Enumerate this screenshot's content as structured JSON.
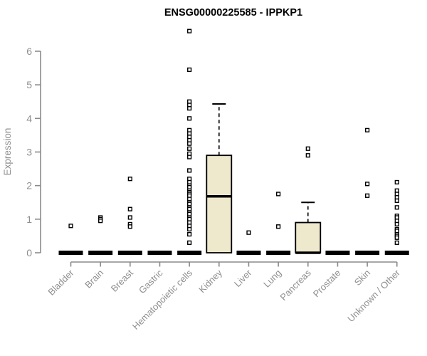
{
  "figure": {
    "title": "ENSG00000225585 - IPPKP1",
    "ylabel": "Expression"
  },
  "chart_data": {
    "type": "boxplot",
    "title": "ENSG00000225585 - IPPKP1",
    "xlabel": "",
    "ylabel": "Expression",
    "ylim": [
      0,
      6.8
    ],
    "yticks": [
      0,
      1,
      2,
      3,
      4,
      5,
      6
    ],
    "grid": false,
    "legend": "none",
    "colors": {
      "box_fill": "#eee8cd",
      "box_stroke": "#000000",
      "median": "#000000",
      "whisker": "#000000",
      "outlier_stroke": "#000000",
      "outlier_fill": "#ffffff",
      "axis": "#8a8a8a",
      "tick_label": "#8f8f8f",
      "title": "#000000",
      "background": "#ffffff"
    },
    "categories": [
      "Bladder",
      "Brain",
      "Breast",
      "Gastric",
      "Hematopoietic cells",
      "Kidney",
      "Liver",
      "Lung",
      "Pancreas",
      "Prostate",
      "Skin",
      "Unknown / Other"
    ],
    "boxes": [
      {
        "category": "Bladder",
        "q1": 0,
        "median": 0,
        "q3": 0,
        "whisker_low": 0,
        "whisker_high": 0,
        "outliers": [
          0.8
        ]
      },
      {
        "category": "Brain",
        "q1": 0,
        "median": 0,
        "q3": 0,
        "whisker_low": 0,
        "whisker_high": 0,
        "outliers": [
          1.05,
          1.0,
          0.95
        ]
      },
      {
        "category": "Breast",
        "q1": 0,
        "median": 0,
        "q3": 0,
        "whisker_low": 0,
        "whisker_high": 0,
        "outliers": [
          2.2,
          1.3,
          1.05,
          0.85,
          0.78
        ]
      },
      {
        "category": "Gastric",
        "q1": 0,
        "median": 0,
        "q3": 0,
        "whisker_low": 0,
        "whisker_high": 0,
        "outliers": []
      },
      {
        "category": "Hematopoietic cells",
        "q1": 0,
        "median": 0,
        "q3": 0,
        "whisker_low": 0,
        "whisker_high": 0,
        "outliers": [
          6.6,
          5.45,
          4.5,
          4.4,
          4.3,
          4.0,
          3.65,
          3.55,
          3.45,
          3.35,
          3.25,
          3.1,
          2.95,
          2.85,
          2.45,
          2.2,
          2.1,
          2.0,
          1.95,
          1.85,
          1.8,
          1.75,
          1.7,
          1.6,
          1.5,
          1.45,
          1.35,
          1.3,
          1.2,
          1.15,
          1.05,
          1.0,
          0.9,
          0.8,
          0.7,
          0.55,
          0.3
        ]
      },
      {
        "category": "Kidney",
        "q1": 0,
        "median": 1.68,
        "q3": 2.9,
        "whisker_low": 0,
        "whisker_high": 4.43,
        "outliers": []
      },
      {
        "category": "Liver",
        "q1": 0,
        "median": 0,
        "q3": 0,
        "whisker_low": 0,
        "whisker_high": 0,
        "outliers": [
          0.6
        ]
      },
      {
        "category": "Lung",
        "q1": 0,
        "median": 0,
        "q3": 0,
        "whisker_low": 0,
        "whisker_high": 0,
        "outliers": [
          1.75,
          0.78
        ]
      },
      {
        "category": "Pancreas",
        "q1": 0,
        "median": 0,
        "q3": 0.9,
        "whisker_low": 0,
        "whisker_high": 1.5,
        "outliers": [
          3.1,
          2.9
        ]
      },
      {
        "category": "Prostate",
        "q1": 0,
        "median": 0,
        "q3": 0,
        "whisker_low": 0,
        "whisker_high": 0,
        "outliers": []
      },
      {
        "category": "Skin",
        "q1": 0,
        "median": 0,
        "q3": 0,
        "whisker_low": 0,
        "whisker_high": 0,
        "outliers": [
          3.65,
          2.05,
          1.7
        ]
      },
      {
        "category": "Unknown / Other",
        "q1": 0,
        "median": 0,
        "q3": 0,
        "whisker_low": 0,
        "whisker_high": 0,
        "outliers": [
          2.1,
          1.85,
          1.75,
          1.65,
          1.55,
          1.35,
          1.1,
          1.05,
          0.95,
          0.85,
          0.7,
          0.65,
          0.55,
          0.5,
          0.45,
          0.3
        ]
      }
    ]
  }
}
